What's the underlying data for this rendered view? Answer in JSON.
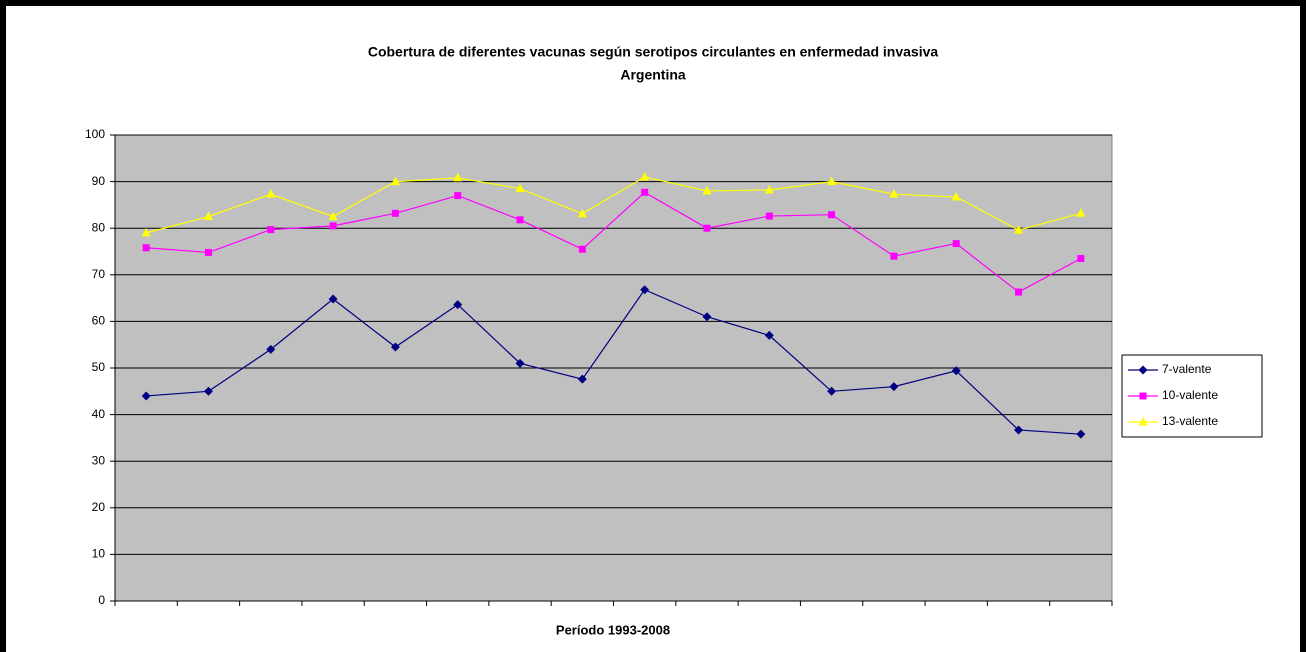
{
  "chart_data": {
    "type": "line",
    "title": "Cobertura de diferentes vacunas según serotipos circulantes en enfermedad invasiva",
    "subtitle": "Argentina",
    "x_label": "Período 1993-2008",
    "categories": [
      null,
      null,
      null,
      null,
      null,
      null,
      null,
      null,
      null,
      null,
      null,
      null,
      null,
      null,
      null,
      null
    ],
    "series": [
      {
        "name": "7-valente",
        "color": "#000080",
        "marker": "diamond",
        "values": [
          44,
          45,
          54,
          64.8,
          54.5,
          63.6,
          51,
          47.6,
          66.8,
          61,
          57,
          45,
          46,
          49.4,
          36.7,
          35.8
        ]
      },
      {
        "name": "10-valente",
        "color": "#ff00ff",
        "marker": "square",
        "values": [
          75.8,
          74.8,
          79.7,
          80.5,
          83.2,
          87,
          81.8,
          75.5,
          87.7,
          80,
          82.6,
          82.9,
          74,
          76.7,
          66.3,
          73.5
        ]
      },
      {
        "name": "13-valente",
        "color": "#ffff00",
        "marker": "triangle",
        "values": [
          79,
          82.5,
          87.3,
          82.5,
          90,
          90.8,
          88.5,
          83.1,
          91,
          88,
          88.2,
          90,
          87.3,
          86.7,
          79.6,
          83.2
        ]
      }
    ],
    "ylim": [
      0,
      100
    ],
    "yticks": [
      0,
      10,
      20,
      30,
      40,
      50,
      60,
      70,
      80,
      90,
      100
    ],
    "grid": true,
    "plot_background": "#c0c0c0",
    "legend": "right"
  }
}
